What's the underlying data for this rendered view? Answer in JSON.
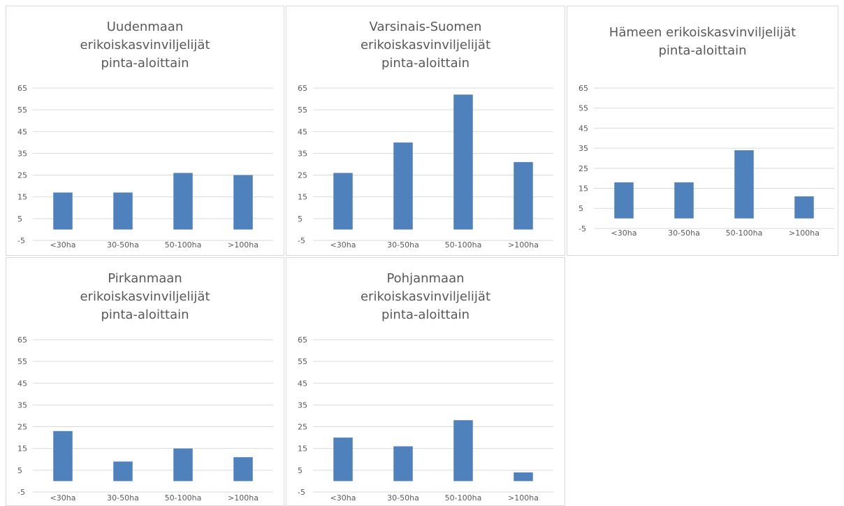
{
  "bar_color": "#4f81bd",
  "chart_data": [
    {
      "type": "bar",
      "title_lines": [
        "Uudenmaan",
        "erikoiskasvinviljelijät",
        "pinta-aloittain"
      ],
      "categories": [
        "<30ha",
        "30-50ha",
        "50-100ha",
        ">100ha"
      ],
      "values": [
        17,
        17,
        26,
        25
      ],
      "yticks": [
        "65",
        "55",
        "45",
        "35",
        "25",
        "15",
        "5",
        "-5"
      ],
      "ylim": [
        -5,
        65
      ],
      "grid": true
    },
    {
      "type": "bar",
      "title_lines": [
        "Varsinais-Suomen",
        "erikoiskasvinviljelijät",
        "pinta-aloittain"
      ],
      "categories": [
        "<30ha",
        "30-50ha",
        "50-100ha",
        ">100ha"
      ],
      "values": [
        26,
        40,
        62,
        31
      ],
      "yticks": [
        "65",
        "55",
        "45",
        "35",
        "25",
        "15",
        "5",
        "-5"
      ],
      "ylim": [
        -5,
        65
      ],
      "grid": true
    },
    {
      "type": "bar",
      "title_lines": [
        "Hämeen erikoiskasvinviljelijät",
        "pinta-aloittain"
      ],
      "categories": [
        "<30ha",
        "30-50ha",
        "50-100ha",
        ">100ha"
      ],
      "values": [
        18,
        18,
        34,
        11
      ],
      "yticks": [
        "65",
        "55",
        "45",
        "35",
        "25",
        "15",
        "5",
        "-5"
      ],
      "ylim": [
        -5,
        65
      ],
      "grid": true
    },
    {
      "type": "bar",
      "title_lines": [
        "Pirkanmaan",
        "erikoiskasvinviljelijät",
        "pinta-aloittain"
      ],
      "categories": [
        "<30ha",
        "30-50ha",
        "50-100ha",
        ">100ha"
      ],
      "values": [
        23,
        9,
        15,
        11
      ],
      "yticks": [
        "65",
        "55",
        "45",
        "35",
        "25",
        "15",
        "5",
        "-5"
      ],
      "ylim": [
        -5,
        65
      ],
      "grid": true
    },
    {
      "type": "bar",
      "title_lines": [
        "Pohjanmaan",
        "erikoiskasvinviljelijät",
        "pinta-aloittain"
      ],
      "categories": [
        "<30ha",
        "30-50ha",
        "50-100ha",
        ">100ha"
      ],
      "values": [
        20,
        16,
        28,
        4
      ],
      "yticks": [
        "65",
        "55",
        "45",
        "35",
        "25",
        "15",
        "5",
        "-5"
      ],
      "ylim": [
        -5,
        65
      ],
      "grid": true
    }
  ]
}
